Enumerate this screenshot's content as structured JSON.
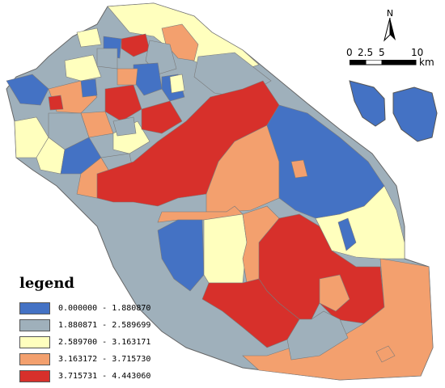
{
  "colors": {
    "c1": "#4472c4",
    "c2": "#9fb0bb",
    "c3": "#ffffbe",
    "c4": "#f3a06e",
    "c5": "#d7302b",
    "stroke": "#7a7a7a",
    "outline": "#666666"
  },
  "north_arrow": {
    "label": "N"
  },
  "scale_bar": {
    "ticks": [
      "0",
      "2.5",
      "5",
      "10"
    ],
    "unit": "km"
  },
  "legend": {
    "title": "legend",
    "classes": [
      {
        "label": "0.000000 - 1.880870",
        "color": "#4472c4"
      },
      {
        "label": "1.880871 - 2.589699",
        "color": "#9fb0bb"
      },
      {
        "label": "2.589700 - 3.163171",
        "color": "#ffffbe"
      },
      {
        "label": "3.163172 - 3.715730",
        "color": "#f3a06e"
      },
      {
        "label": "3.715731 - 4.443060",
        "color": "#d7302b"
      }
    ]
  }
}
